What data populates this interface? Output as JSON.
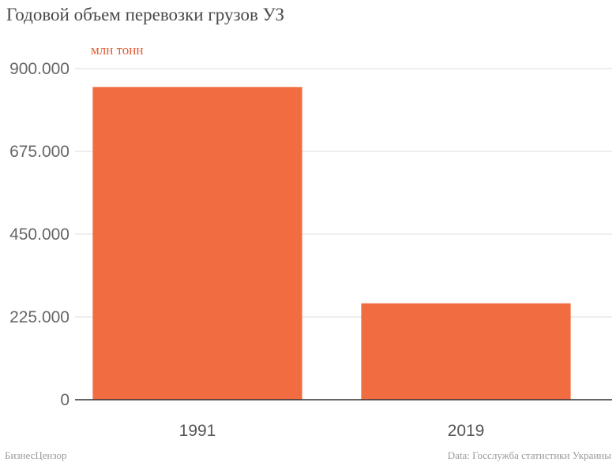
{
  "chart_data": {
    "type": "bar",
    "title": "Годовой объем перевозки грузов УЗ",
    "unit_label": "млн тонн",
    "categories": [
      "1991",
      "2019"
    ],
    "values": [
      850000,
      262000
    ],
    "ylim": [
      0,
      900000
    ],
    "yticks": [
      0,
      225000,
      450000,
      675000,
      900000
    ],
    "ytick_labels": [
      "0",
      "225.000",
      "450.000",
      "675.000",
      "900.000"
    ],
    "grid": true,
    "bar_color": "#f26c42",
    "footer_left": "БизнесЦензор",
    "footer_right": "Data: Госслужба статистики Украины"
  }
}
